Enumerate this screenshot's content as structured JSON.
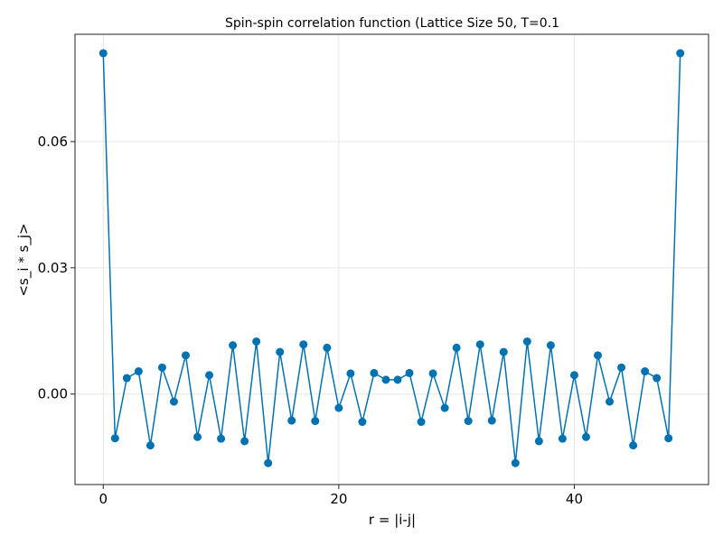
{
  "chart_data": {
    "type": "line",
    "title": "Spin-spin correlation function (Lattice Size 50, T=0.1",
    "xlabel": "r = |i-j|",
    "ylabel": "<s_i * s_j>",
    "xlim": [
      -2.4,
      51.4
    ],
    "ylim": [
      -0.0215,
      0.0855
    ],
    "x_ticks": [
      0,
      20,
      40
    ],
    "y_ticks": [
      0.0,
      0.03,
      0.06
    ],
    "x_tick_labels": [
      "0",
      "20",
      "40"
    ],
    "y_tick_labels": [
      "0.00",
      "0.03",
      "0.06"
    ],
    "grid": true,
    "legend": "none",
    "series": [
      {
        "color": "#0072b2",
        "marker": "circle",
        "x": [
          0,
          1,
          2,
          3,
          4,
          5,
          6,
          7,
          8,
          9,
          10,
          11,
          12,
          13,
          14,
          15,
          16,
          17,
          18,
          19,
          20,
          21,
          22,
          23,
          24,
          25,
          26,
          27,
          28,
          29,
          30,
          31,
          32,
          33,
          34,
          35,
          36,
          37,
          38,
          39,
          40,
          41,
          42,
          43,
          44,
          45,
          46,
          47,
          48,
          49
        ],
        "y": [
          0.081,
          -0.0105,
          0.0038,
          0.0054,
          -0.0122,
          0.0063,
          -0.0018,
          0.0092,
          -0.0102,
          0.0045,
          -0.0106,
          0.0116,
          -0.0112,
          0.0125,
          -0.0164,
          0.01,
          -0.0063,
          0.0118,
          -0.0064,
          0.011,
          -0.0033,
          0.0049,
          -0.0066,
          0.005,
          0.0034,
          0.0034,
          0.005,
          -0.0066,
          0.0049,
          -0.0033,
          0.011,
          -0.0064,
          0.0118,
          -0.0063,
          0.01,
          -0.0164,
          0.0125,
          -0.0112,
          0.0116,
          -0.0106,
          0.0045,
          -0.0102,
          0.0092,
          -0.0018,
          0.0063,
          -0.0122,
          0.0054,
          0.0038,
          -0.0105,
          0.081
        ]
      }
    ]
  }
}
